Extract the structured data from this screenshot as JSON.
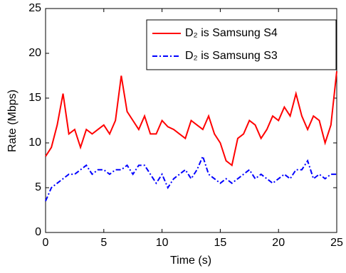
{
  "chart_data": {
    "type": "line",
    "xlabel": "Time (s)",
    "ylabel": "Rate (Mbps)",
    "x": [
      0,
      0.5,
      1,
      1.5,
      2,
      2.5,
      3,
      3.5,
      4,
      4.5,
      5,
      5.5,
      6,
      6.5,
      7,
      7.5,
      8,
      8.5,
      9,
      9.5,
      10,
      10.5,
      11,
      11.5,
      12,
      12.5,
      13,
      13.5,
      14,
      14.5,
      15,
      15.5,
      16,
      16.5,
      17,
      17.5,
      18,
      18.5,
      19,
      19.5,
      20,
      20.5,
      21,
      21.5,
      22,
      22.5,
      23,
      23.5,
      24,
      24.5,
      25
    ],
    "series": [
      {
        "name": "D₂ is Samsung S4",
        "color": "#ff0000",
        "style": "solid",
        "values": [
          8.5,
          9.5,
          12,
          15.5,
          11,
          11.5,
          9.5,
          11.5,
          11,
          11.5,
          12,
          11,
          12.5,
          17.5,
          13.5,
          12.5,
          11.5,
          13,
          11,
          11,
          12.5,
          11.8,
          11.5,
          11,
          10.5,
          12.5,
          12,
          11.5,
          13,
          11,
          10,
          8,
          7.5,
          10.5,
          11,
          12.5,
          12,
          10.5,
          11.5,
          13,
          12.5,
          14,
          13,
          15.5,
          13,
          11.5,
          13,
          12.5,
          10,
          12,
          18
        ]
      },
      {
        "name": "D₂ is Samsung S3",
        "color": "#0000ff",
        "style": "dashdot",
        "values": [
          3.5,
          5,
          5.5,
          6,
          6.5,
          6.5,
          7,
          7.5,
          6.5,
          7,
          7,
          6.5,
          7,
          7,
          7.5,
          6.5,
          7.5,
          7.5,
          6.5,
          5.5,
          6.5,
          5,
          6,
          6.5,
          7,
          6,
          7,
          8.5,
          6.5,
          6,
          5.5,
          6,
          5.5,
          6,
          6.5,
          7,
          6,
          6.5,
          6,
          5.5,
          6,
          6.5,
          6,
          7,
          7,
          8,
          6,
          6.5,
          6,
          6.5,
          6.5
        ]
      }
    ],
    "xlim": [
      0,
      25
    ],
    "xticks": [
      0,
      5,
      10,
      15,
      20,
      25
    ],
    "ylim": [
      0,
      25
    ],
    "yticks": [
      0,
      5,
      10,
      15,
      20,
      25
    ],
    "grid": false,
    "legend": "upper right"
  }
}
